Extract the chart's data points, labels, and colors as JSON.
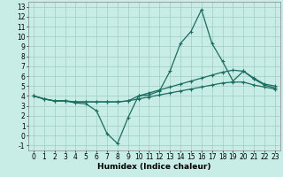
{
  "title": "",
  "xlabel": "Humidex (Indice chaleur)",
  "bg_color": "#c8ece6",
  "grid_color": "#a0ccc4",
  "line_color": "#1a6e60",
  "xlim": [
    -0.5,
    23.5
  ],
  "ylim": [
    -1.5,
    13.5
  ],
  "xticks": [
    0,
    1,
    2,
    3,
    4,
    5,
    6,
    7,
    8,
    9,
    10,
    11,
    12,
    13,
    14,
    15,
    16,
    17,
    18,
    19,
    20,
    21,
    22,
    23
  ],
  "yticks": [
    -1,
    0,
    1,
    2,
    3,
    4,
    5,
    6,
    7,
    8,
    9,
    10,
    11,
    12,
    13
  ],
  "line1_x": [
    0,
    1,
    2,
    3,
    4,
    5,
    6,
    7,
    8,
    9,
    10,
    11,
    12,
    13,
    14,
    15,
    16,
    17,
    18,
    19,
    20,
    21,
    22,
    23
  ],
  "line1_y": [
    4.0,
    3.7,
    3.5,
    3.5,
    3.3,
    3.2,
    2.5,
    0.2,
    -0.8,
    1.8,
    4.0,
    4.1,
    4.5,
    6.5,
    9.3,
    10.5,
    12.7,
    9.3,
    7.5,
    5.5,
    6.5,
    5.7,
    5.1,
    4.8
  ],
  "line2_x": [
    0,
    1,
    2,
    3,
    4,
    5,
    6,
    7,
    8,
    9,
    10,
    11,
    12,
    13,
    14,
    15,
    16,
    17,
    18,
    19,
    20,
    21,
    22,
    23
  ],
  "line2_y": [
    4.0,
    3.7,
    3.5,
    3.5,
    3.4,
    3.4,
    3.4,
    3.4,
    3.4,
    3.5,
    4.0,
    4.3,
    4.6,
    4.9,
    5.2,
    5.5,
    5.8,
    6.1,
    6.4,
    6.6,
    6.5,
    5.8,
    5.2,
    5.0
  ],
  "line3_x": [
    0,
    1,
    2,
    3,
    4,
    5,
    6,
    7,
    8,
    9,
    10,
    11,
    12,
    13,
    14,
    15,
    16,
    17,
    18,
    19,
    20,
    21,
    22,
    23
  ],
  "line3_y": [
    4.0,
    3.7,
    3.5,
    3.5,
    3.4,
    3.4,
    3.4,
    3.4,
    3.4,
    3.5,
    3.7,
    3.9,
    4.1,
    4.3,
    4.5,
    4.7,
    4.9,
    5.1,
    5.3,
    5.4,
    5.4,
    5.1,
    4.9,
    4.7
  ],
  "marker": "+",
  "markersize": 3,
  "markeredgewidth": 0.8,
  "linewidth": 0.9,
  "fontsize_ticks": 5.5,
  "fontsize_label": 6.5
}
